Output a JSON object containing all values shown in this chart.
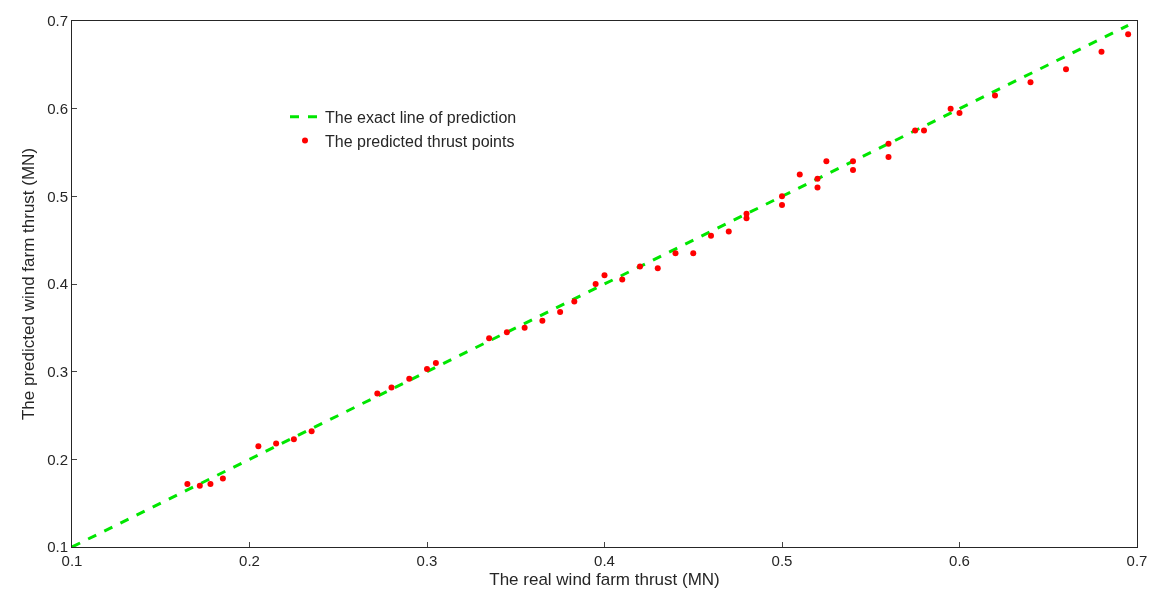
{
  "chart_data": {
    "type": "scatter",
    "xlabel": "The real wind farm thrust (MN)",
    "ylabel": "The predicted wind farm thrust (MN)",
    "xlim": [
      0.1,
      0.7
    ],
    "ylim": [
      0.1,
      0.7
    ],
    "xticks": [
      0.1,
      0.2,
      0.3,
      0.4,
      0.5,
      0.6,
      0.7
    ],
    "yticks": [
      0.1,
      0.2,
      0.3,
      0.4,
      0.5,
      0.6,
      0.7
    ],
    "legend": "top left",
    "series": [
      {
        "name": "The exact line of prediction",
        "type": "line",
        "line_style": "dashed",
        "marker": "none",
        "color": "#00e600",
        "x": [
          0.1,
          0.695
        ],
        "values": [
          0.1,
          0.695
        ]
      },
      {
        "name": "The predicted thrust points",
        "marker": "circle",
        "color": "#ff0000",
        "x": [
          0.165,
          0.172,
          0.178,
          0.185,
          0.205,
          0.215,
          0.225,
          0.235,
          0.272,
          0.28,
          0.29,
          0.3,
          0.305,
          0.335,
          0.345,
          0.355,
          0.365,
          0.375,
          0.383,
          0.395,
          0.4,
          0.42,
          0.44,
          0.46,
          0.48,
          0.5,
          0.51,
          0.52,
          0.525,
          0.54,
          0.56,
          0.58,
          0.595,
          0.41,
          0.43,
          0.45,
          0.47,
          0.48,
          0.5,
          0.52,
          0.54,
          0.56,
          0.575,
          0.6,
          0.62,
          0.64,
          0.66,
          0.68,
          0.695
        ],
        "values": [
          0.172,
          0.17,
          0.172,
          0.178,
          0.215,
          0.218,
          0.223,
          0.232,
          0.275,
          0.282,
          0.292,
          0.303,
          0.31,
          0.338,
          0.345,
          0.35,
          0.358,
          0.368,
          0.38,
          0.4,
          0.41,
          0.42,
          0.435,
          0.455,
          0.475,
          0.5,
          0.525,
          0.52,
          0.54,
          0.54,
          0.56,
          0.575,
          0.6,
          0.405,
          0.418,
          0.435,
          0.46,
          0.48,
          0.49,
          0.51,
          0.53,
          0.545,
          0.575,
          0.595,
          0.615,
          0.63,
          0.645,
          0.665,
          0.685
        ]
      }
    ]
  }
}
